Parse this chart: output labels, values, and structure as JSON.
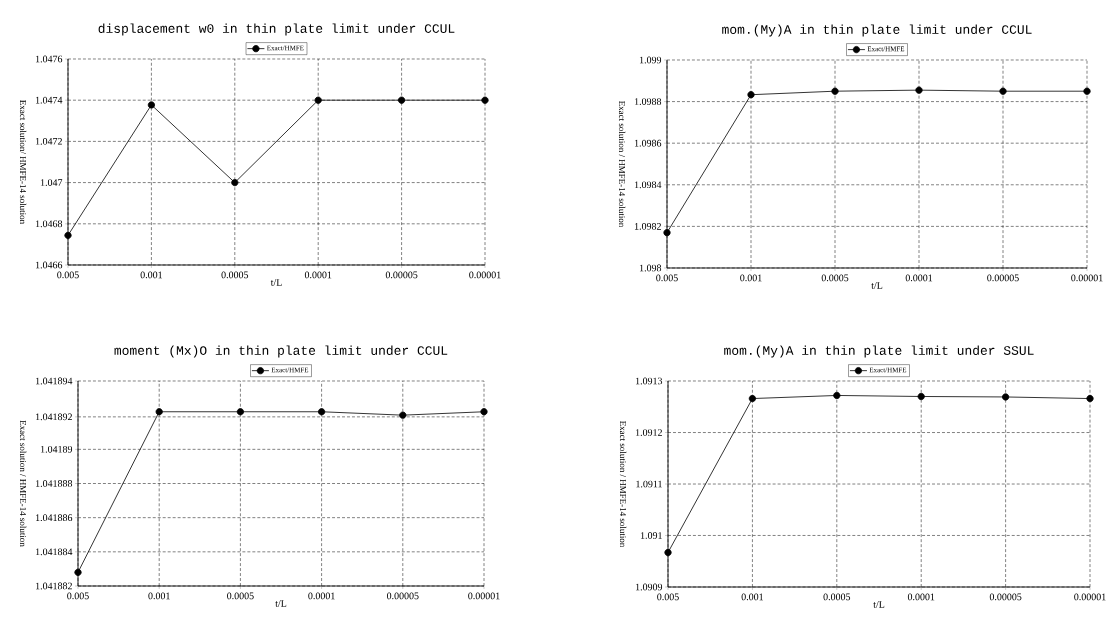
{
  "chart_data": [
    {
      "type": "line",
      "title": "displacement w0 in thin plate limit under CCUL",
      "xlabel": "t/L",
      "ylabel": "Exact solution/ HMFE-14 solution",
      "categories": [
        "0.005",
        "0.001",
        "0.0005",
        "0.0001",
        "0.00005",
        "0.00001"
      ],
      "series": [
        {
          "name": "Exact/HMFE",
          "color": "#000000",
          "values": [
            1.046744,
            1.047377,
            1.047,
            1.0474,
            1.0474,
            1.0474
          ]
        }
      ],
      "ylim": [
        1.0466,
        1.0476
      ],
      "yticks": [
        1.0466,
        1.0468,
        1.047,
        1.0472,
        1.0474,
        1.0476
      ],
      "grid": true,
      "legend": "top",
      "marker": "circle",
      "line_style": "solid"
    },
    {
      "type": "line",
      "title": "mom.(My)A in thin plate limit under CCUL",
      "xlabel": "t/L",
      "ylabel": "Exact solution / HMFE-14 solution",
      "categories": [
        "0.005",
        "0.001",
        "0.0005",
        "0.0001",
        "0.00005",
        "0.00001"
      ],
      "series": [
        {
          "name": "Exact/HMFE",
          "color": "#000000",
          "values": [
            1.09817,
            1.098833,
            1.09885,
            1.098855,
            1.09885,
            1.09885
          ]
        }
      ],
      "ylim": [
        1.098,
        1.099
      ],
      "yticks": [
        1.098,
        1.0982,
        1.0984,
        1.0986,
        1.0988,
        1.099
      ],
      "grid": true,
      "legend": "top",
      "marker": "circle",
      "line_style": "solid"
    },
    {
      "type": "line",
      "title": "moment (Mx)O in thin plate limit under CCUL",
      "xlabel": "t/L",
      "ylabel": "Exact solution / HMFE-14 solution",
      "categories": [
        "0.005",
        "0.001",
        "0.0005",
        "0.0001",
        "0.00005",
        "0.00001"
      ],
      "series": [
        {
          "name": "Exact/HMFE",
          "color": "#000000",
          "values": [
            1.0418828,
            1.0418922,
            1.0418922,
            1.0418922,
            1.0418921,
            1.0418922
          ]
        }
      ],
      "ylim": [
        1.041882,
        1.041894
      ],
      "yticks": [
        1.041882,
        1.041884,
        1.041886,
        1.041888,
        1.04189,
        1.041892,
        1.041894
      ],
      "grid": true,
      "legend": "top",
      "marker": "circle",
      "line_style": "solid"
    },
    {
      "type": "line",
      "title": "mom.(My)A in thin plate limit under SSUL",
      "xlabel": "t/L",
      "ylabel": "Exact solution / HMFE-14 solution",
      "categories": [
        "0.005",
        "0.001",
        "0.0005",
        "0.0001",
        "0.00005",
        "0.00001"
      ],
      "series": [
        {
          "name": "Exact/HMFE",
          "color": "#000000",
          "values": [
            1.090967,
            1.091266,
            1.091272,
            1.09127,
            1.091269,
            1.091266
          ]
        }
      ],
      "ylim": [
        1.0909,
        1.0913
      ],
      "yticks": [
        1.0909,
        1.091,
        1.0911,
        1.0912,
        1.0913
      ],
      "grid": true,
      "legend": "top",
      "marker": "circle",
      "line_style": "solid"
    }
  ]
}
